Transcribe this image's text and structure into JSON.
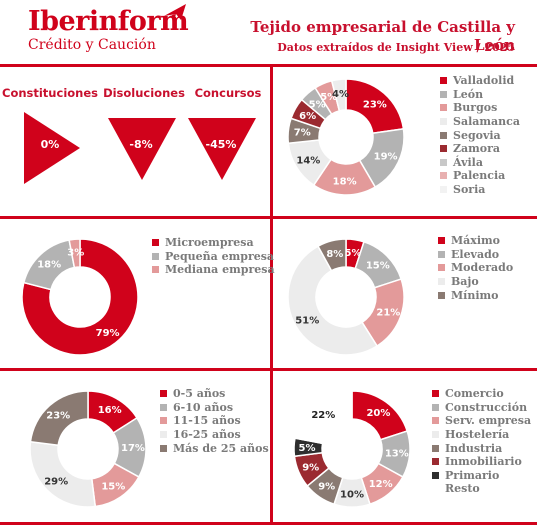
{
  "header": {
    "logo_main": "Iberinform",
    "logo_sub": "Crédito y Caución",
    "title": "Tejido empresarial de Castilla y León",
    "subtitle": "Datos extraídos de Insight View / 2025"
  },
  "colors": {
    "accent": "#d0021b",
    "gray": "#b3b3b3",
    "pink": "#e39a9a",
    "light": "#ececec",
    "taupe": "#8a7a72",
    "maroon": "#9b2a30",
    "dark": "#2e2e2e"
  },
  "kpis": [
    {
      "label": "Constituciones",
      "value": "0%",
      "direction": "up"
    },
    {
      "label": "Disoluciones",
      "value": "-8%",
      "direction": "down"
    },
    {
      "label": "Concursos",
      "value": "-45%",
      "direction": "down"
    }
  ],
  "chart_data": [
    {
      "type": "pie",
      "id": "provincias",
      "categories": [
        "Valladolid",
        "León",
        "Burgos",
        "Salamanca",
        "Segovia",
        "Zamora",
        "Ávila",
        "Palencia",
        "Soria"
      ],
      "values": [
        23,
        19,
        18,
        14,
        7,
        6,
        5,
        5,
        4
      ],
      "labels": [
        "23%",
        "19%",
        "18%",
        "14%",
        "7%",
        "6%",
        "5%",
        "5%",
        "4%"
      ],
      "colors": [
        "#d0021b",
        "#b3b3b3",
        "#e39a9a",
        "#ececec",
        "#8a7a72",
        "#9b2a30",
        "#b3b3b3",
        "#e39a9a",
        "#ececec"
      ],
      "legend_colors": [
        "#d0021b",
        "#b3b3b3",
        "#e39a9a",
        "#ececec",
        "#8a7a72",
        "#9b2a30",
        "#c8c8c8",
        "#e8b0b0",
        "#f2f2f2"
      ]
    },
    {
      "type": "pie",
      "id": "tamano",
      "categories": [
        "Microempresa",
        "Pequeña empresa",
        "Mediana empresa"
      ],
      "values": [
        79,
        18,
        3
      ],
      "labels": [
        "79%",
        "18%",
        "3%"
      ],
      "colors": [
        "#d0021b",
        "#b3b3b3",
        "#e39a9a"
      ],
      "legend_colors": [
        "#d0021b",
        "#b3b3b3",
        "#e39a9a"
      ]
    },
    {
      "type": "pie",
      "id": "riesgo",
      "categories": [
        "Máximo",
        "Elevado",
        "Moderado",
        "Bajo",
        "Mínimo"
      ],
      "values": [
        5,
        15,
        21,
        51,
        8
      ],
      "labels": [
        "5%",
        "15%",
        "21%",
        "51%",
        "8%"
      ],
      "colors": [
        "#d0021b",
        "#b3b3b3",
        "#e39a9a",
        "#ececec",
        "#8a7a72"
      ],
      "legend_colors": [
        "#d0021b",
        "#b3b3b3",
        "#e39a9a",
        "#ececec",
        "#8a7a72"
      ]
    },
    {
      "type": "pie",
      "id": "antiguedad",
      "categories": [
        "0-5 años",
        "6-10 años",
        "11-15 años",
        "16-25 años",
        "Más de 25 años"
      ],
      "values": [
        16,
        17,
        15,
        29,
        23
      ],
      "labels": [
        "16%",
        "17%",
        "15%",
        "29%",
        "23%"
      ],
      "colors": [
        "#d0021b",
        "#b3b3b3",
        "#e39a9a",
        "#ececec",
        "#8a7a72"
      ],
      "legend_colors": [
        "#d0021b",
        "#b3b3b3",
        "#e39a9a",
        "#ececec",
        "#8a7a72"
      ]
    },
    {
      "type": "pie",
      "id": "sector",
      "categories": [
        "Comercio",
        "Construcción",
        "Serv. empresa",
        "Hostelería",
        "Industria",
        "Inmobiliario",
        "Primario",
        "Resto"
      ],
      "values": [
        20,
        13,
        12,
        10,
        9,
        9,
        5,
        22
      ],
      "labels": [
        "20%",
        "13%",
        "12%",
        "10%",
        "9%",
        "9%",
        "5%",
        "22%"
      ],
      "colors": [
        "#d0021b",
        "#b3b3b3",
        "#e39a9a",
        "#ececec",
        "#8a7a72",
        "#9b2a30",
        "#2e2e2e",
        "#ffffff"
      ],
      "legend_colors": [
        "#d0021b",
        "#b3b3b3",
        "#e39a9a",
        "#ececec",
        "#8a7a72",
        "#9b2a30",
        "#2e2e2e",
        null
      ]
    }
  ]
}
